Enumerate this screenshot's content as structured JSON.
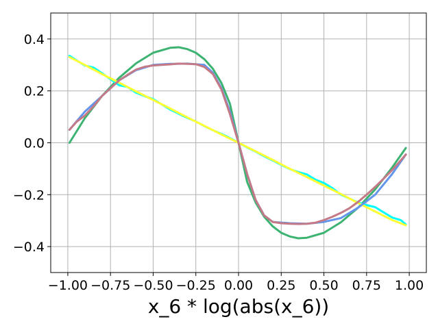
{
  "chart_data": {
    "type": "line",
    "title": "",
    "xlabel": "x_6 * log(abs(x_6))",
    "ylabel": "",
    "xlim": [
      -1.1,
      1.1
    ],
    "ylim": [
      -0.5,
      0.5
    ],
    "grid": true,
    "x_ticks": [
      -1.0,
      -0.75,
      -0.5,
      -0.25,
      0.0,
      0.25,
      0.5,
      0.75,
      1.0
    ],
    "x_tick_labels": [
      "−1.00",
      "−0.75",
      "−0.50",
      "−0.25",
      "0.00",
      "0.25",
      "0.50",
      "0.75",
      "1.00"
    ],
    "y_ticks": [
      -0.4,
      -0.2,
      0.0,
      0.2,
      0.4
    ],
    "y_tick_labels": [
      "−0.4",
      "−0.2",
      "0.0",
      "0.2",
      "0.4"
    ],
    "series": [
      {
        "color": "#3cb371",
        "x": [
          -0.99,
          -0.9,
          -0.8,
          -0.7,
          -0.6,
          -0.5,
          -0.4,
          -0.35,
          -0.3,
          -0.25,
          -0.2,
          -0.15,
          -0.1,
          -0.05,
          0.0,
          0.05,
          0.1,
          0.15,
          0.2,
          0.25,
          0.3,
          0.35,
          0.4,
          0.5,
          0.6,
          0.7,
          0.8,
          0.9,
          0.98
        ],
        "y": [
          0.0,
          0.095,
          0.18,
          0.25,
          0.306,
          0.347,
          0.366,
          0.368,
          0.361,
          0.347,
          0.322,
          0.285,
          0.23,
          0.15,
          0.0,
          -0.15,
          -0.23,
          -0.285,
          -0.322,
          -0.347,
          -0.361,
          -0.368,
          -0.366,
          -0.347,
          -0.306,
          -0.25,
          -0.18,
          -0.095,
          -0.02
        ]
      },
      {
        "color": "#00ffff",
        "x": [
          -0.99,
          -0.95,
          -0.9,
          -0.85,
          -0.8,
          -0.75,
          -0.7,
          -0.65,
          -0.6,
          -0.55,
          -0.5,
          -0.45,
          -0.4,
          -0.35,
          -0.3,
          -0.25,
          -0.2,
          -0.15,
          -0.1,
          -0.05,
          0.0,
          0.05,
          0.1,
          0.15,
          0.2,
          0.25,
          0.3,
          0.35,
          0.4,
          0.45,
          0.5,
          0.55,
          0.6,
          0.65,
          0.7,
          0.75,
          0.8,
          0.85,
          0.9,
          0.95,
          0.98
        ],
        "y": [
          0.335,
          0.318,
          0.298,
          0.29,
          0.268,
          0.245,
          0.222,
          0.215,
          0.193,
          0.18,
          0.168,
          0.148,
          0.128,
          0.112,
          0.096,
          0.082,
          0.064,
          0.048,
          0.034,
          0.018,
          0.0,
          -0.018,
          -0.034,
          -0.052,
          -0.068,
          -0.085,
          -0.101,
          -0.113,
          -0.122,
          -0.142,
          -0.155,
          -0.175,
          -0.2,
          -0.215,
          -0.23,
          -0.24,
          -0.248,
          -0.268,
          -0.288,
          -0.298,
          -0.315
        ]
      },
      {
        "color": "#ffff33",
        "x": [
          -0.99,
          -0.9,
          -0.8,
          -0.7,
          -0.6,
          -0.5,
          -0.4,
          -0.3,
          -0.2,
          -0.1,
          0.0,
          0.1,
          0.2,
          0.3,
          0.4,
          0.5,
          0.6,
          0.7,
          0.8,
          0.9,
          0.98
        ],
        "y": [
          0.33,
          0.3,
          0.265,
          0.232,
          0.198,
          0.165,
          0.132,
          0.098,
          0.065,
          0.032,
          0.0,
          -0.033,
          -0.066,
          -0.1,
          -0.132,
          -0.165,
          -0.198,
          -0.232,
          -0.265,
          -0.298,
          -0.318
        ]
      },
      {
        "color": "#6495ed",
        "x": [
          -0.99,
          -0.9,
          -0.8,
          -0.7,
          -0.6,
          -0.5,
          -0.4,
          -0.3,
          -0.2,
          -0.15,
          -0.1,
          -0.05,
          0.0,
          0.05,
          0.1,
          0.15,
          0.2,
          0.3,
          0.4,
          0.5,
          0.6,
          0.7,
          0.8,
          0.9,
          0.98
        ],
        "y": [
          0.05,
          0.12,
          0.18,
          0.24,
          0.28,
          0.3,
          0.304,
          0.305,
          0.3,
          0.27,
          0.21,
          0.12,
          0.0,
          -0.12,
          -0.22,
          -0.28,
          -0.305,
          -0.31,
          -0.312,
          -0.305,
          -0.29,
          -0.25,
          -0.2,
          -0.12,
          -0.045
        ]
      },
      {
        "color": "#c47a86",
        "x": [
          -0.99,
          -0.95,
          -0.9,
          -0.85,
          -0.8,
          -0.75,
          -0.7,
          -0.65,
          -0.6,
          -0.55,
          -0.5,
          -0.45,
          -0.4,
          -0.35,
          -0.3,
          -0.25,
          -0.2,
          -0.15,
          -0.1,
          -0.05,
          0.0,
          0.05,
          0.1,
          0.15,
          0.2,
          0.25,
          0.3,
          0.35,
          0.4,
          0.45,
          0.5,
          0.55,
          0.6,
          0.65,
          0.7,
          0.75,
          0.8,
          0.85,
          0.9,
          0.95,
          0.98
        ],
        "y": [
          0.05,
          0.08,
          0.105,
          0.14,
          0.18,
          0.21,
          0.24,
          0.262,
          0.282,
          0.293,
          0.298,
          0.3,
          0.302,
          0.305,
          0.304,
          0.303,
          0.292,
          0.265,
          0.205,
          0.11,
          0.0,
          -0.12,
          -0.22,
          -0.28,
          -0.305,
          -0.31,
          -0.312,
          -0.313,
          -0.312,
          -0.308,
          -0.298,
          -0.285,
          -0.27,
          -0.252,
          -0.228,
          -0.2,
          -0.17,
          -0.138,
          -0.105,
          -0.068,
          -0.045
        ]
      }
    ]
  }
}
